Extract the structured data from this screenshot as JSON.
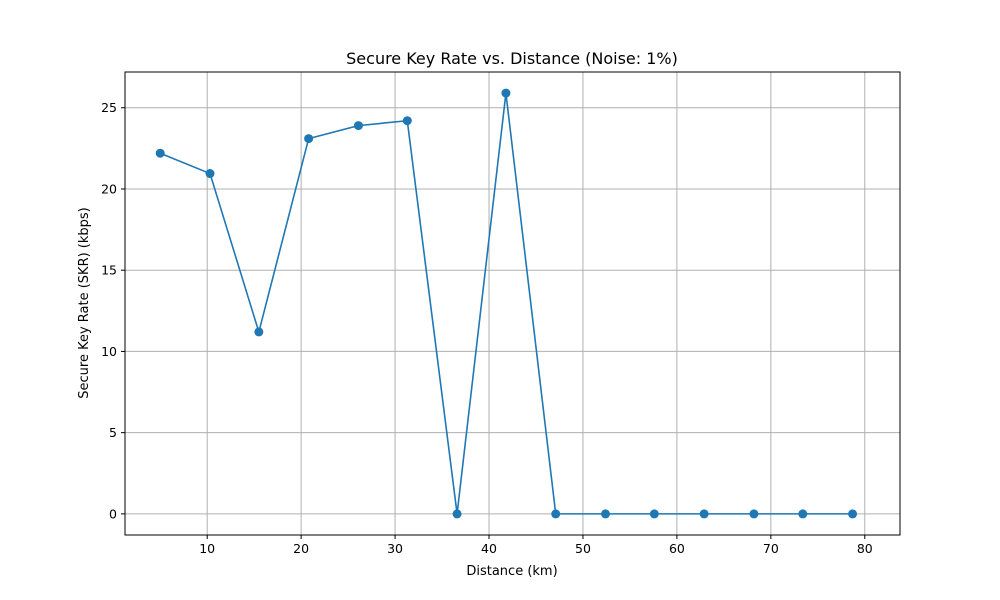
{
  "chart_data": {
    "type": "line",
    "title": "Secure Key Rate vs. Distance (Noise: 1%)",
    "xlabel": "Distance (km)",
    "ylabel": "Secure Key Rate (SKR) (kbps)",
    "xlim": [
      1.25,
      83.75
    ],
    "ylim": [
      -1.3,
      27.2
    ],
    "xticks": [
      10,
      20,
      30,
      40,
      50,
      60,
      70,
      80
    ],
    "yticks": [
      0,
      5,
      10,
      15,
      20,
      25
    ],
    "grid": true,
    "marker": "circle",
    "color": "#1f77b4",
    "series": [
      {
        "x": [
          5.0,
          10.3,
          15.5,
          20.8,
          26.1,
          31.3,
          36.6,
          41.8,
          47.1,
          52.4,
          57.6,
          62.9,
          68.2,
          73.4,
          78.7
        ],
        "values": [
          22.2,
          20.95,
          11.2,
          23.1,
          23.9,
          24.2,
          0.0,
          25.9,
          0.0,
          0.0,
          0.0,
          0.0,
          0.0,
          0.0,
          0.0
        ]
      }
    ]
  }
}
